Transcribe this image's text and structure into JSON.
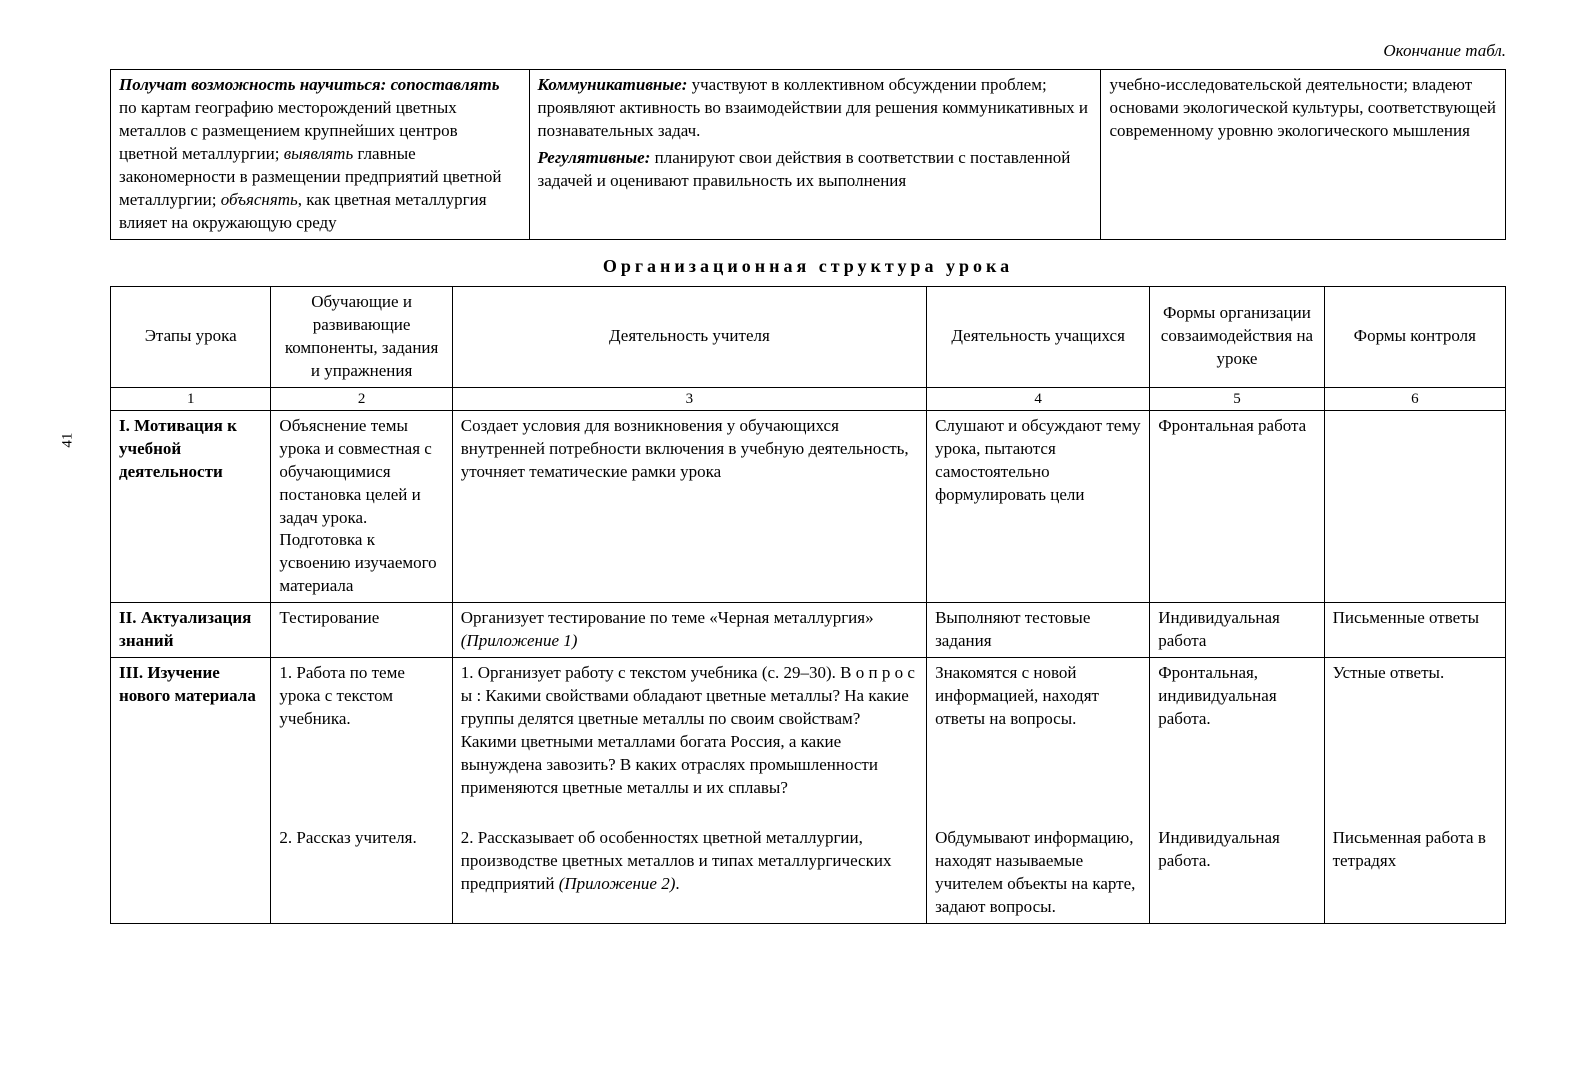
{
  "page_number": "41",
  "continuation_label": "Окончание табл.",
  "top_table": {
    "col_widths": [
      "30%",
      "41%",
      "29%"
    ],
    "cells": {
      "c1": {
        "runs": [
          {
            "t": "Получат возможность научиться: сопоставлять",
            "cls": "bi"
          },
          {
            "t": " по картам географию месторождений цветных металлов с размещением крупнейших центров цветной металлургии; ",
            "cls": ""
          },
          {
            "t": "выявлять",
            "cls": "i"
          },
          {
            "t": " главные закономерности в размещении предприятий цветной металлургии; ",
            "cls": ""
          },
          {
            "t": "объяснять",
            "cls": "i"
          },
          {
            "t": ", как цветная металлургия влияет на окружающую среду",
            "cls": ""
          }
        ]
      },
      "c2": {
        "paras": [
          {
            "runs": [
              {
                "t": "Коммуникативные:",
                "cls": "bi"
              },
              {
                "t": " участвуют в коллективном обсуждении проблем; проявляют активность во взаимодействии для решения коммуникативных и познавательных задач.",
                "cls": ""
              }
            ]
          },
          {
            "runs": [
              {
                "t": "Регулятивные:",
                "cls": "bi"
              },
              {
                "t": " планируют свои действия в соответствии с поставленной задачей и оценивают правильность их выполнения",
                "cls": ""
              }
            ]
          }
        ]
      },
      "c3": "учебно-исследовательской деятельности; владеют основами экологической культуры, соответствующей современному уровню экологического мышления"
    }
  },
  "section_title": "Организационная структура урока",
  "main_table": {
    "col_widths": [
      "11.5%",
      "13%",
      "34%",
      "16%",
      "12.5%",
      "13%"
    ],
    "headers": [
      "Этапы урока",
      "Обучающие и развивающие компоненты, задания и упражнения",
      "Деятельность учителя",
      "Деятельность учащихся",
      "Формы организации совзаимодействия на уроке",
      "Формы контроля"
    ],
    "numbers": [
      "1",
      "2",
      "3",
      "4",
      "5",
      "6"
    ],
    "rows": [
      {
        "stage_bold": "I. Мотивация к учебной деятельности",
        "comp": "Объяснение темы урока и совместная с обучающимися постановка целей и задач урока. Подготовка к усвоению изучаемого материала",
        "teacher": "Создает условия для возникновения у обучающихся внутренней потребности включения в учебную деятельность, уточняет тематические рамки урока",
        "students": "Слушают и обсуждают тему урока, пытаются самостоятельно формулировать цели",
        "form_org": "Фронтальная работа",
        "control": ""
      },
      {
        "stage_bold": "II. Актуализация знаний",
        "comp": "Тестирование",
        "teacher_runs": [
          {
            "t": "Организует тестирование по теме «Черная металлургия» ",
            "cls": ""
          },
          {
            "t": "(Приложение 1)",
            "cls": "i"
          }
        ],
        "students": "Выполняют тестовые задания",
        "form_org": "Индивидуальная работа",
        "control": "Письменные ответы"
      },
      {
        "stage_bold": "III. Изучение нового материала",
        "comp_paras": [
          "1. Работа по теме урока с текстом учебника.",
          "2. Рассказ учителя."
        ],
        "teacher_paras": [
          {
            "runs": [
              {
                "t": "1. Организует работу с текстом учебника (с. 29–30). В о п р о с ы : Какими свойствами обладают цветные металлы? На какие группы делятся цветные металлы по своим свойствам? Какими цветными металлами богата Россия, а какие вынуждена завозить? В каких отраслях промышленности применяются цветные металлы и их сплавы?",
                "cls": ""
              }
            ]
          },
          {
            "runs": [
              {
                "t": "2. Рассказывает об особенностях цветной металлургии, производстве цветных металлов и типах металлургических предприятий ",
                "cls": ""
              },
              {
                "t": "(Приложение 2)",
                "cls": "i"
              },
              {
                "t": ".",
                "cls": ""
              }
            ]
          }
        ],
        "students_paras": [
          "Знакомятся с новой информацией, находят ответы на вопросы.",
          "Обдумывают информацию, находят называемые учителем объекты на карте, задают вопросы."
        ],
        "form_org_paras": [
          "Фронтальная, индивидуальная работа.",
          "Индивидуальная работа."
        ],
        "control_paras": [
          "Устные ответы.",
          "Письменная работа в тетрадях"
        ]
      }
    ]
  }
}
